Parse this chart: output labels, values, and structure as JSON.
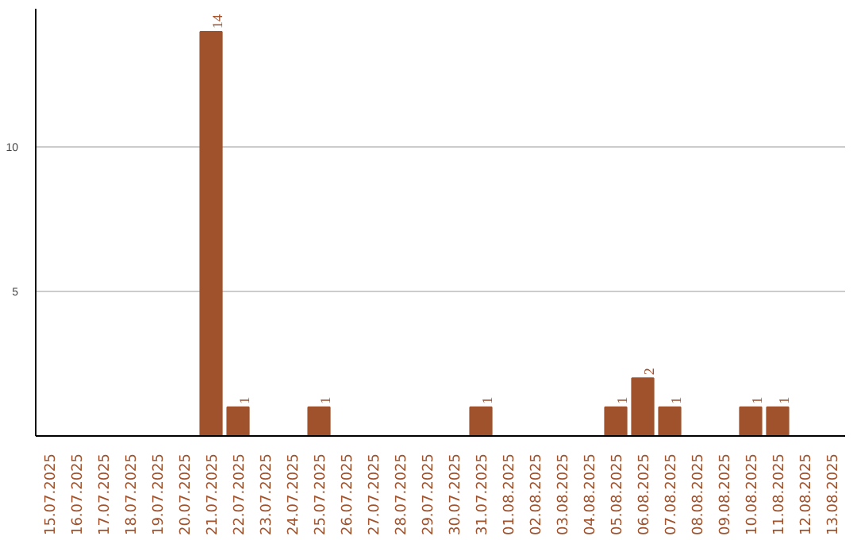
{
  "chart_data": {
    "type": "bar",
    "categories": [
      "15.07.2025",
      "16.07.2025",
      "17.07.2025",
      "18.07.2025",
      "19.07.2025",
      "20.07.2025",
      "21.07.2025",
      "22.07.2025",
      "23.07.2025",
      "24.07.2025",
      "25.07.2025",
      "26.07.2025",
      "27.07.2025",
      "28.07.2025",
      "29.07.2025",
      "30.07.2025",
      "31.07.2025",
      "01.08.2025",
      "02.08.2025",
      "03.08.2025",
      "04.08.2025",
      "05.08.2025",
      "06.08.2025",
      "07.08.2025",
      "08.08.2025",
      "09.08.2025",
      "10.08.2025",
      "11.08.2025",
      "12.08.2025",
      "13.08.2025"
    ],
    "values": [
      0,
      0,
      0,
      0,
      0,
      0,
      14,
      1,
      0,
      0,
      1,
      0,
      0,
      0,
      0,
      0,
      1,
      0,
      0,
      0,
      0,
      1,
      2,
      1,
      0,
      0,
      1,
      1,
      0,
      0
    ],
    "value_labels": [
      null,
      null,
      null,
      null,
      null,
      null,
      "14",
      "1",
      null,
      null,
      "1",
      null,
      null,
      null,
      null,
      null,
      "1",
      null,
      null,
      null,
      null,
      "1",
      "2",
      "1",
      null,
      null,
      "1",
      "1",
      null,
      null
    ],
    "color": "#a0522d",
    "ylim": [
      0,
      14.8
    ],
    "yticks": [
      5,
      10
    ],
    "grid": "y"
  }
}
